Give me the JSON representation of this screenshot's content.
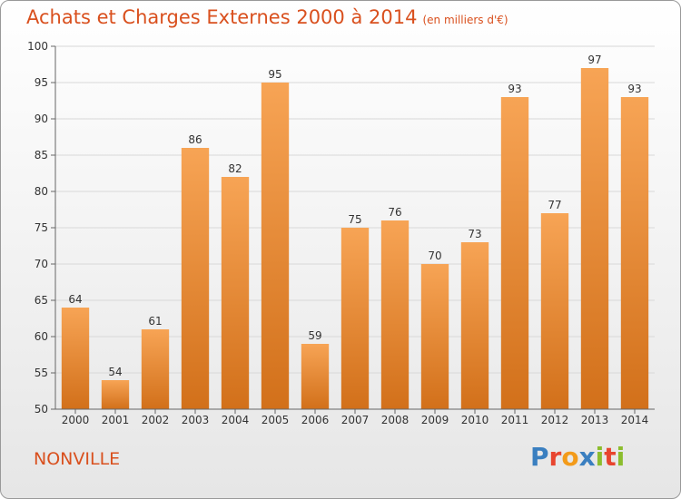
{
  "header": {
    "title": "Achats et Charges Externes 2000 à 2014",
    "subtitle": "(en milliers d'€)"
  },
  "footer": {
    "city": "NONVILLE",
    "logo_text": "Proxiti",
    "logo_colors": [
      "#3a7fc0",
      "#e8452f",
      "#f39b1a",
      "#3a7fc0",
      "#8cbd2e",
      "#e8452f",
      "#8cbd2e"
    ]
  },
  "chart_data": {
    "type": "bar",
    "categories": [
      "2000",
      "2001",
      "2002",
      "2003",
      "2004",
      "2005",
      "2006",
      "2007",
      "2008",
      "2009",
      "2010",
      "2011",
      "2012",
      "2013",
      "2014"
    ],
    "values": [
      64,
      54,
      61,
      86,
      82,
      95,
      59,
      75,
      76,
      70,
      73,
      93,
      77,
      97,
      93
    ],
    "ylim": [
      50,
      100
    ],
    "yticks": [
      50,
      55,
      60,
      65,
      70,
      75,
      80,
      85,
      90,
      95,
      100
    ],
    "grid": true,
    "bar_color_top": "#f7a455",
    "bar_color_bottom": "#d2701a"
  }
}
